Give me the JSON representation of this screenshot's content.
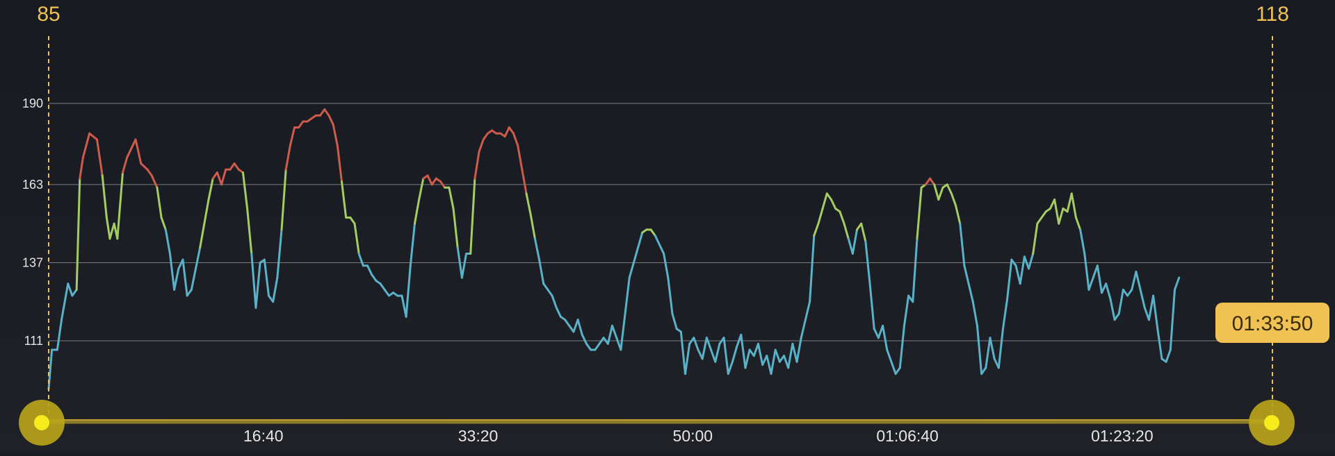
{
  "range_start_label": "85",
  "range_end_label": "118",
  "cursor_time_label": "01:33:50",
  "colors": {
    "zone_low": "#5ab2c8",
    "zone_mid": "#a6cc62",
    "zone_high": "#cf5b4b",
    "accent": "#f0c253",
    "grid": "#7a7c80"
  },
  "chart_data": {
    "type": "line",
    "title": "",
    "xlabel": "",
    "ylabel": "",
    "x_unit": "elapsed time (seconds)",
    "x_tick_labels": [
      "16:40",
      "33:20",
      "50:00",
      "01:06:40",
      "01:23:20"
    ],
    "x_tick_values": [
      1000,
      2000,
      3000,
      4000,
      5000
    ],
    "xlim": [
      0,
      5700
    ],
    "y_ticks": [
      111,
      137,
      163,
      190
    ],
    "ylim": [
      85,
      202
    ],
    "grid": "horizontal",
    "zone_thresholds": [
      145,
      163
    ],
    "series": [
      {
        "values": [
          [
            0,
            95
          ],
          [
            15,
            108
          ],
          [
            40,
            108
          ],
          [
            60,
            118
          ],
          [
            90,
            130
          ],
          [
            110,
            126
          ],
          [
            130,
            128
          ],
          [
            145,
            165
          ],
          [
            160,
            172
          ],
          [
            190,
            180
          ],
          [
            225,
            178
          ],
          [
            250,
            166
          ],
          [
            270,
            152
          ],
          [
            285,
            145
          ],
          [
            305,
            150
          ],
          [
            320,
            145
          ],
          [
            345,
            167
          ],
          [
            365,
            172
          ],
          [
            385,
            175
          ],
          [
            405,
            178
          ],
          [
            430,
            170
          ],
          [
            460,
            168
          ],
          [
            480,
            166
          ],
          [
            505,
            162
          ],
          [
            525,
            152
          ],
          [
            545,
            148
          ],
          [
            565,
            140
          ],
          [
            585,
            128
          ],
          [
            605,
            135
          ],
          [
            625,
            138
          ],
          [
            645,
            126
          ],
          [
            665,
            128
          ],
          [
            685,
            135
          ],
          [
            705,
            142
          ],
          [
            725,
            150
          ],
          [
            745,
            158
          ],
          [
            765,
            165
          ],
          [
            785,
            167
          ],
          [
            805,
            163
          ],
          [
            825,
            168
          ],
          [
            845,
            168
          ],
          [
            865,
            170
          ],
          [
            885,
            168
          ],
          [
            905,
            167
          ],
          [
            925,
            155
          ],
          [
            945,
            140
          ],
          [
            965,
            122
          ],
          [
            985,
            137
          ],
          [
            1005,
            138
          ],
          [
            1025,
            126
          ],
          [
            1045,
            124
          ],
          [
            1065,
            132
          ],
          [
            1085,
            148
          ],
          [
            1105,
            168
          ],
          [
            1125,
            176
          ],
          [
            1145,
            182
          ],
          [
            1165,
            182
          ],
          [
            1185,
            184
          ],
          [
            1205,
            184
          ],
          [
            1225,
            185
          ],
          [
            1245,
            186
          ],
          [
            1265,
            186
          ],
          [
            1285,
            188
          ],
          [
            1305,
            186
          ],
          [
            1325,
            183
          ],
          [
            1345,
            176
          ],
          [
            1365,
            164
          ],
          [
            1385,
            152
          ],
          [
            1405,
            152
          ],
          [
            1425,
            150
          ],
          [
            1445,
            140
          ],
          [
            1465,
            136
          ],
          [
            1485,
            136
          ],
          [
            1505,
            133
          ],
          [
            1525,
            131
          ],
          [
            1545,
            130
          ],
          [
            1565,
            128
          ],
          [
            1585,
            126
          ],
          [
            1605,
            127
          ],
          [
            1625,
            126
          ],
          [
            1645,
            126
          ],
          [
            1665,
            119
          ],
          [
            1685,
            136
          ],
          [
            1705,
            150
          ],
          [
            1725,
            158
          ],
          [
            1745,
            165
          ],
          [
            1765,
            166
          ],
          [
            1785,
            163
          ],
          [
            1805,
            165
          ],
          [
            1825,
            164
          ],
          [
            1845,
            162
          ],
          [
            1865,
            162
          ],
          [
            1885,
            155
          ],
          [
            1905,
            142
          ],
          [
            1925,
            132
          ],
          [
            1945,
            140
          ],
          [
            1965,
            140
          ],
          [
            1985,
            165
          ],
          [
            2005,
            174
          ],
          [
            2025,
            178
          ],
          [
            2045,
            180
          ],
          [
            2065,
            181
          ],
          [
            2085,
            180
          ],
          [
            2105,
            180
          ],
          [
            2125,
            179
          ],
          [
            2145,
            182
          ],
          [
            2165,
            180
          ],
          [
            2185,
            176
          ],
          [
            2205,
            168
          ],
          [
            2225,
            160
          ],
          [
            2245,
            153
          ],
          [
            2265,
            145
          ],
          [
            2285,
            138
          ],
          [
            2305,
            130
          ],
          [
            2325,
            128
          ],
          [
            2345,
            126
          ],
          [
            2365,
            122
          ],
          [
            2385,
            119
          ],
          [
            2405,
            118
          ],
          [
            2425,
            116
          ],
          [
            2445,
            114
          ],
          [
            2465,
            118
          ],
          [
            2485,
            113
          ],
          [
            2505,
            110
          ],
          [
            2525,
            108
          ],
          [
            2545,
            108
          ],
          [
            2565,
            110
          ],
          [
            2585,
            112
          ],
          [
            2605,
            110
          ],
          [
            2625,
            116
          ],
          [
            2645,
            112
          ],
          [
            2665,
            108
          ],
          [
            2685,
            120
          ],
          [
            2705,
            132
          ],
          [
            2725,
            137
          ],
          [
            2745,
            142
          ],
          [
            2765,
            147
          ],
          [
            2785,
            148
          ],
          [
            2805,
            148
          ],
          [
            2825,
            146
          ],
          [
            2845,
            143
          ],
          [
            2865,
            140
          ],
          [
            2885,
            132
          ],
          [
            2905,
            120
          ],
          [
            2925,
            115
          ],
          [
            2945,
            114
          ],
          [
            2965,
            100
          ],
          [
            2985,
            110
          ],
          [
            3005,
            112
          ],
          [
            3025,
            108
          ],
          [
            3045,
            105
          ],
          [
            3065,
            112
          ],
          [
            3085,
            108
          ],
          [
            3105,
            104
          ],
          [
            3125,
            110
          ],
          [
            3145,
            112
          ],
          [
            3165,
            100
          ],
          [
            3185,
            104
          ],
          [
            3205,
            109
          ],
          [
            3225,
            113
          ],
          [
            3245,
            102
          ],
          [
            3265,
            108
          ],
          [
            3285,
            106
          ],
          [
            3305,
            110
          ],
          [
            3325,
            103
          ],
          [
            3345,
            106
          ],
          [
            3365,
            100
          ],
          [
            3385,
            108
          ],
          [
            3405,
            104
          ],
          [
            3425,
            106
          ],
          [
            3445,
            102
          ],
          [
            3465,
            110
          ],
          [
            3485,
            104
          ],
          [
            3505,
            112
          ],
          [
            3525,
            118
          ],
          [
            3545,
            124
          ],
          [
            3565,
            146
          ],
          [
            3585,
            150
          ],
          [
            3605,
            155
          ],
          [
            3625,
            160
          ],
          [
            3645,
            158
          ],
          [
            3665,
            155
          ],
          [
            3685,
            154
          ],
          [
            3705,
            150
          ],
          [
            3725,
            145
          ],
          [
            3745,
            140
          ],
          [
            3765,
            148
          ],
          [
            3785,
            150
          ],
          [
            3805,
            144
          ],
          [
            3825,
            130
          ],
          [
            3845,
            115
          ],
          [
            3865,
            112
          ],
          [
            3885,
            116
          ],
          [
            3905,
            108
          ],
          [
            3925,
            104
          ],
          [
            3945,
            100
          ],
          [
            3965,
            102
          ],
          [
            3985,
            116
          ],
          [
            4005,
            126
          ],
          [
            4025,
            124
          ],
          [
            4045,
            145
          ],
          [
            4065,
            162
          ],
          [
            4085,
            163
          ],
          [
            4105,
            165
          ],
          [
            4125,
            163
          ],
          [
            4145,
            158
          ],
          [
            4165,
            162
          ],
          [
            4185,
            163
          ],
          [
            4205,
            160
          ],
          [
            4225,
            156
          ],
          [
            4245,
            150
          ],
          [
            4265,
            136
          ],
          [
            4285,
            130
          ],
          [
            4305,
            124
          ],
          [
            4325,
            116
          ],
          [
            4345,
            100
          ],
          [
            4365,
            102
          ],
          [
            4385,
            112
          ],
          [
            4405,
            105
          ],
          [
            4425,
            102
          ],
          [
            4445,
            115
          ],
          [
            4465,
            125
          ],
          [
            4485,
            138
          ],
          [
            4505,
            136
          ],
          [
            4525,
            130
          ],
          [
            4545,
            139
          ],
          [
            4565,
            135
          ],
          [
            4585,
            140
          ],
          [
            4605,
            150
          ],
          [
            4625,
            152
          ],
          [
            4645,
            154
          ],
          [
            4665,
            155
          ],
          [
            4685,
            158
          ],
          [
            4705,
            150
          ],
          [
            4725,
            155
          ],
          [
            4745,
            154
          ],
          [
            4765,
            160
          ],
          [
            4785,
            152
          ],
          [
            4805,
            148
          ],
          [
            4825,
            140
          ],
          [
            4845,
            128
          ],
          [
            4865,
            132
          ],
          [
            4885,
            136
          ],
          [
            4905,
            127
          ],
          [
            4925,
            130
          ],
          [
            4945,
            125
          ],
          [
            4965,
            118
          ],
          [
            4985,
            120
          ],
          [
            5005,
            128
          ],
          [
            5025,
            126
          ],
          [
            5045,
            128
          ],
          [
            5065,
            134
          ],
          [
            5085,
            128
          ],
          [
            5105,
            122
          ],
          [
            5125,
            118
          ],
          [
            5145,
            126
          ],
          [
            5165,
            115
          ],
          [
            5185,
            105
          ],
          [
            5205,
            104
          ],
          [
            5225,
            108
          ],
          [
            5245,
            128
          ],
          [
            5265,
            132
          ]
        ]
      }
    ]
  }
}
